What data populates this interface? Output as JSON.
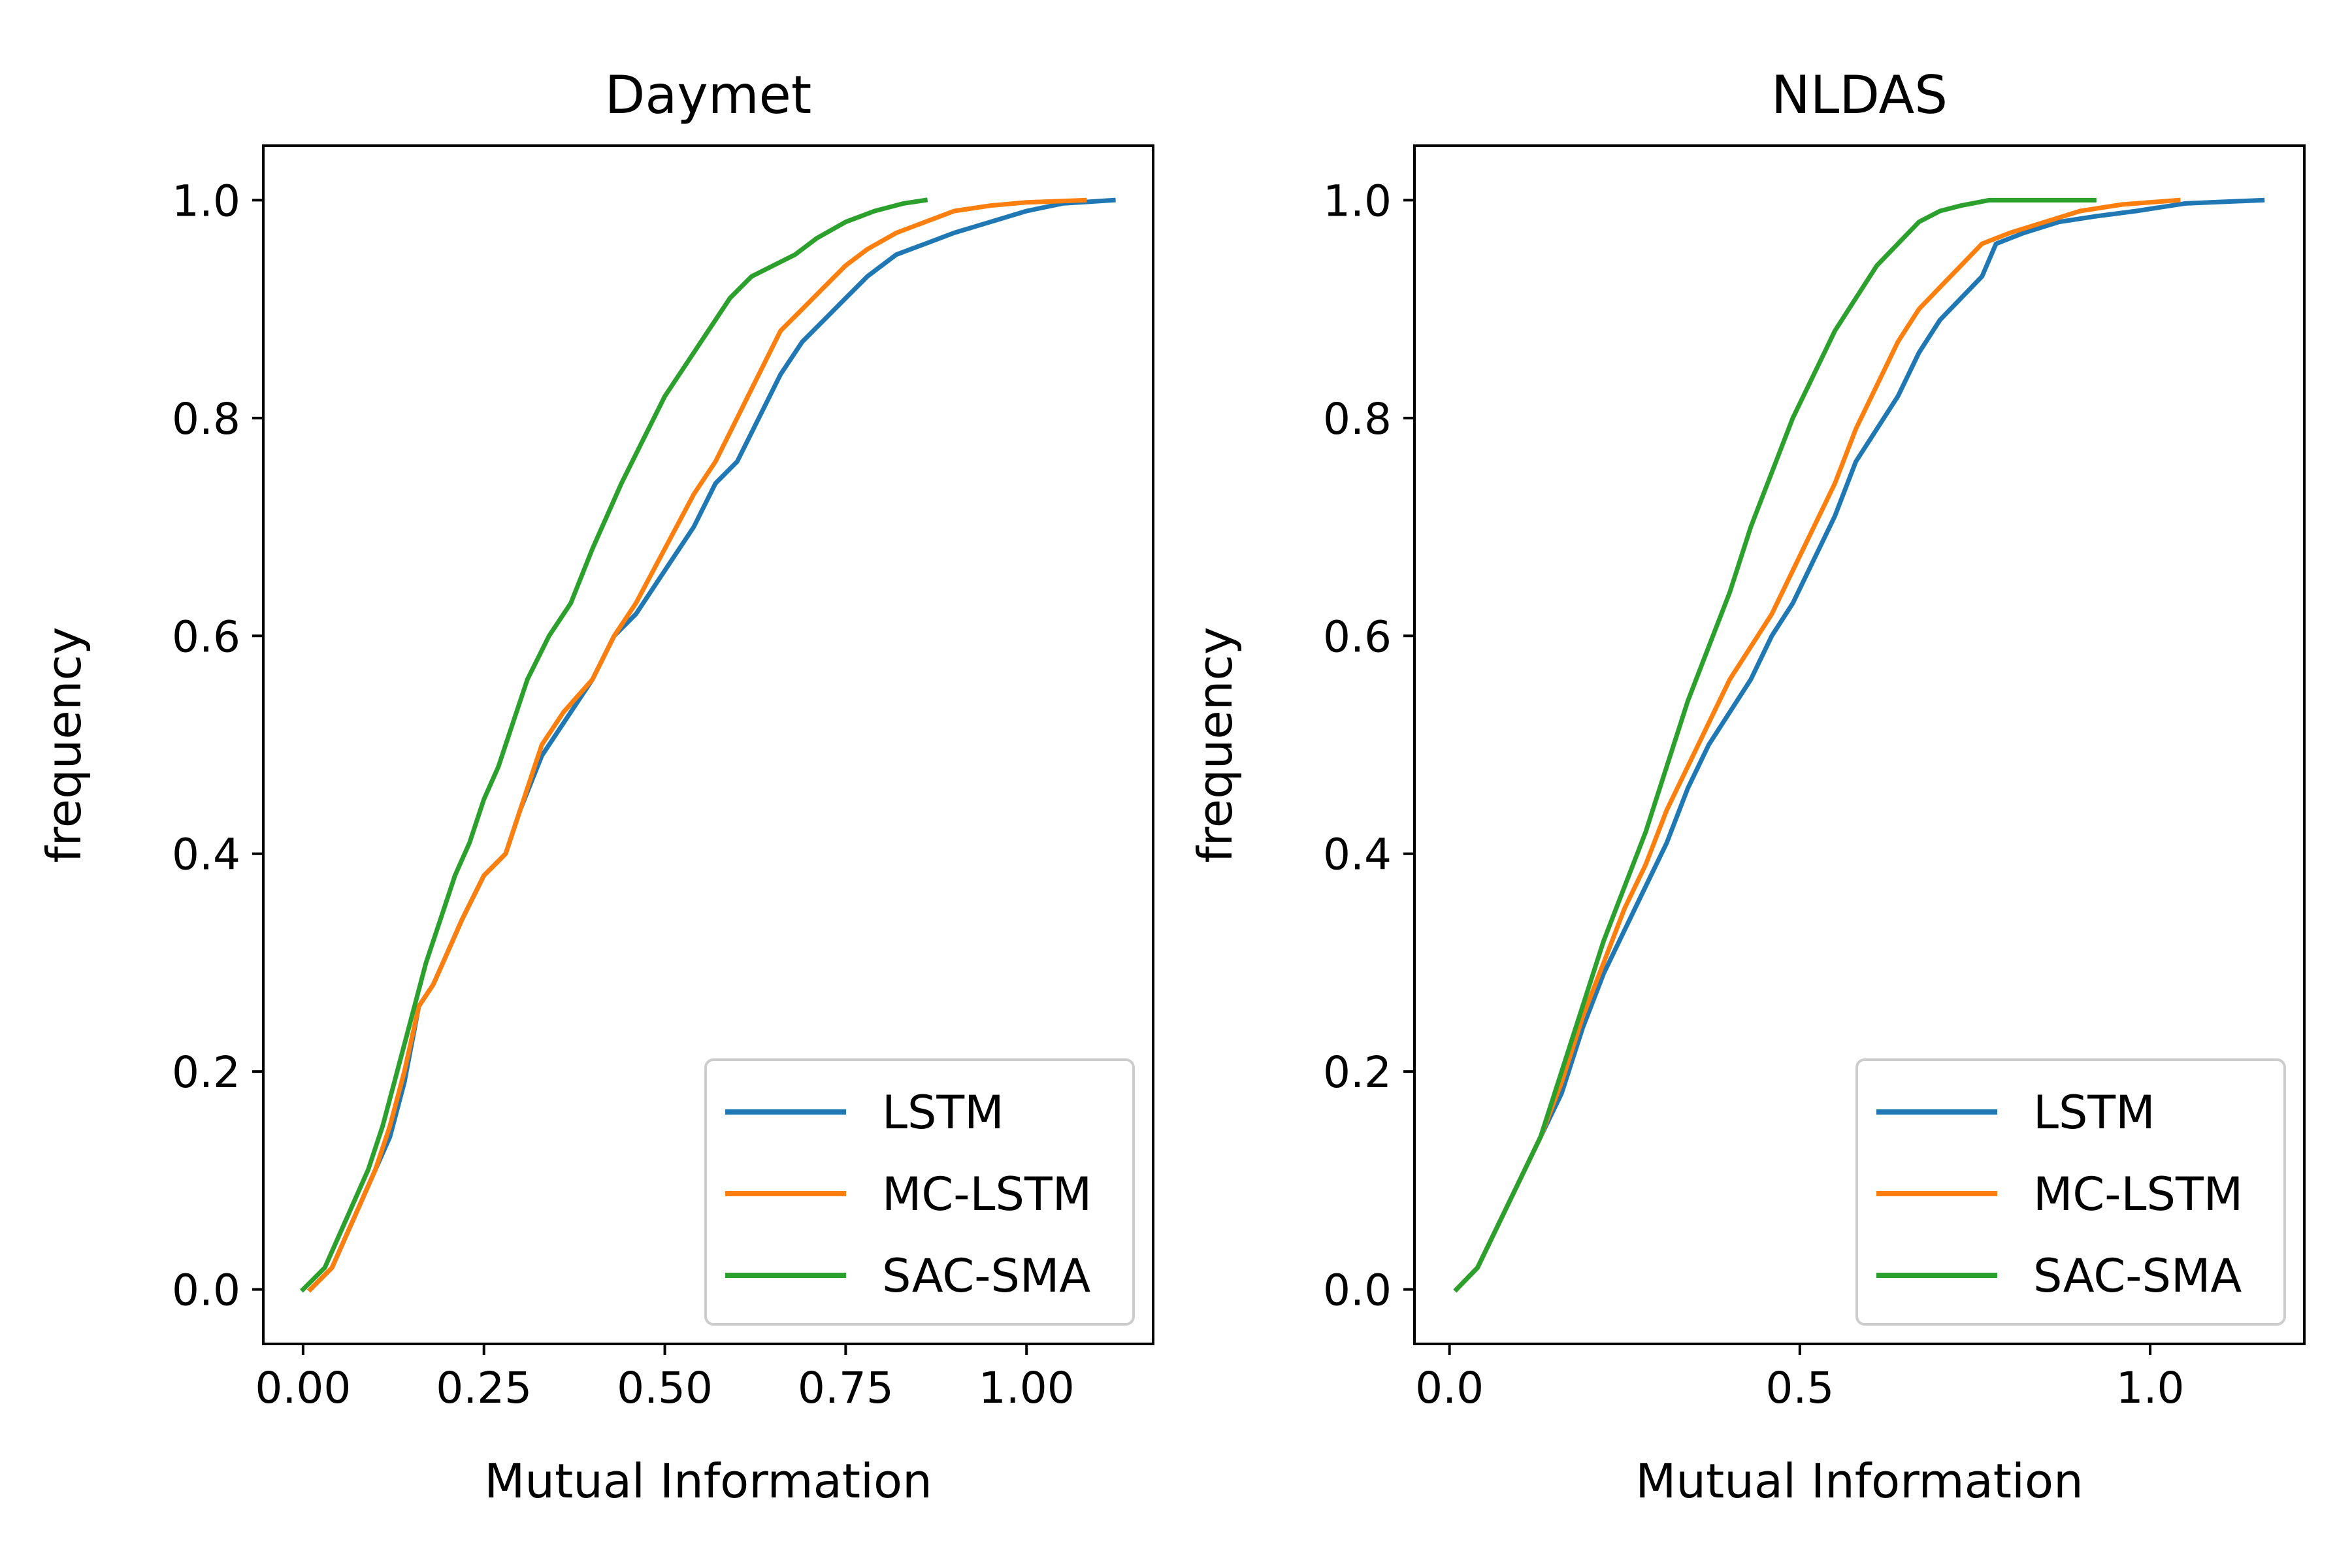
{
  "chart_data": [
    {
      "type": "line",
      "title": "Daymet",
      "xlabel": "Mutual Information",
      "ylabel": "frequency",
      "xlim": [
        -0.055,
        1.175
      ],
      "ylim": [
        -0.05,
        1.05
      ],
      "xticks": [
        0.0,
        0.25,
        0.5,
        0.75,
        1.0
      ],
      "xtick_labels": [
        "0.00",
        "0.25",
        "0.50",
        "0.75",
        "1.00"
      ],
      "yticks": [
        0.0,
        0.2,
        0.4,
        0.6,
        0.8,
        1.0
      ],
      "ytick_labels": [
        "0.0",
        "0.2",
        "0.4",
        "0.6",
        "0.8",
        "1.0"
      ],
      "legend": "lower-right",
      "grid": false,
      "series": [
        {
          "name": "LSTM",
          "color": "#1f77b4",
          "x": [
            0.01,
            0.04,
            0.06,
            0.08,
            0.1,
            0.12,
            0.14,
            0.16,
            0.18,
            0.2,
            0.22,
            0.25,
            0.28,
            0.3,
            0.33,
            0.36,
            0.4,
            0.43,
            0.46,
            0.5,
            0.54,
            0.57,
            0.6,
            0.63,
            0.66,
            0.69,
            0.72,
            0.75,
            0.78,
            0.82,
            0.86,
            0.9,
            0.95,
            1.0,
            1.05,
            1.12
          ],
          "y": [
            0.0,
            0.02,
            0.05,
            0.08,
            0.11,
            0.14,
            0.19,
            0.26,
            0.28,
            0.31,
            0.34,
            0.38,
            0.4,
            0.44,
            0.49,
            0.52,
            0.56,
            0.6,
            0.62,
            0.66,
            0.7,
            0.74,
            0.76,
            0.8,
            0.84,
            0.87,
            0.89,
            0.91,
            0.93,
            0.95,
            0.96,
            0.97,
            0.98,
            0.99,
            0.997,
            1.0
          ]
        },
        {
          "name": "MC-LSTM",
          "color": "#ff7f0e",
          "x": [
            0.01,
            0.04,
            0.06,
            0.08,
            0.1,
            0.12,
            0.14,
            0.16,
            0.18,
            0.2,
            0.22,
            0.25,
            0.28,
            0.3,
            0.33,
            0.36,
            0.4,
            0.43,
            0.46,
            0.5,
            0.54,
            0.57,
            0.6,
            0.63,
            0.66,
            0.69,
            0.72,
            0.75,
            0.78,
            0.82,
            0.86,
            0.9,
            0.95,
            1.0,
            1.08
          ],
          "y": [
            0.0,
            0.02,
            0.05,
            0.08,
            0.11,
            0.15,
            0.2,
            0.26,
            0.28,
            0.31,
            0.34,
            0.38,
            0.4,
            0.44,
            0.5,
            0.53,
            0.56,
            0.6,
            0.63,
            0.68,
            0.73,
            0.76,
            0.8,
            0.84,
            0.88,
            0.9,
            0.92,
            0.94,
            0.955,
            0.97,
            0.98,
            0.99,
            0.995,
            0.998,
            1.0
          ]
        },
        {
          "name": "SAC-SMA",
          "color": "#2ca02c",
          "x": [
            0.0,
            0.03,
            0.05,
            0.07,
            0.09,
            0.11,
            0.13,
            0.15,
            0.17,
            0.19,
            0.21,
            0.23,
            0.25,
            0.27,
            0.29,
            0.31,
            0.34,
            0.37,
            0.4,
            0.42,
            0.44,
            0.47,
            0.5,
            0.53,
            0.56,
            0.59,
            0.62,
            0.65,
            0.68,
            0.71,
            0.75,
            0.79,
            0.83,
            0.86
          ],
          "y": [
            0.0,
            0.02,
            0.05,
            0.08,
            0.11,
            0.15,
            0.2,
            0.25,
            0.3,
            0.34,
            0.38,
            0.41,
            0.45,
            0.48,
            0.52,
            0.56,
            0.6,
            0.63,
            0.68,
            0.71,
            0.74,
            0.78,
            0.82,
            0.85,
            0.88,
            0.91,
            0.93,
            0.94,
            0.95,
            0.965,
            0.98,
            0.99,
            0.997,
            1.0
          ]
        }
      ]
    },
    {
      "type": "line",
      "title": "NLDAS",
      "xlabel": "Mutual Information",
      "ylabel": "frequency",
      "xlim": [
        -0.05,
        1.22
      ],
      "ylim": [
        -0.05,
        1.05
      ],
      "xticks": [
        0.0,
        0.5,
        1.0
      ],
      "xtick_labels": [
        "0.0",
        "0.5",
        "1.0"
      ],
      "yticks": [
        0.0,
        0.2,
        0.4,
        0.6,
        0.8,
        1.0
      ],
      "ytick_labels": [
        "0.0",
        "0.2",
        "0.4",
        "0.6",
        "0.8",
        "1.0"
      ],
      "legend": "lower-right",
      "grid": false,
      "series": [
        {
          "name": "LSTM",
          "color": "#1f77b4",
          "x": [
            0.01,
            0.04,
            0.07,
            0.1,
            0.13,
            0.16,
            0.19,
            0.22,
            0.25,
            0.28,
            0.31,
            0.34,
            0.37,
            0.4,
            0.43,
            0.46,
            0.49,
            0.52,
            0.55,
            0.58,
            0.61,
            0.64,
            0.67,
            0.7,
            0.73,
            0.76,
            0.78,
            0.82,
            0.87,
            0.92,
            0.98,
            1.05,
            1.16
          ],
          "y": [
            0.0,
            0.02,
            0.06,
            0.1,
            0.14,
            0.18,
            0.24,
            0.29,
            0.33,
            0.37,
            0.41,
            0.46,
            0.5,
            0.53,
            0.56,
            0.6,
            0.63,
            0.67,
            0.71,
            0.76,
            0.79,
            0.82,
            0.86,
            0.89,
            0.91,
            0.93,
            0.96,
            0.97,
            0.98,
            0.985,
            0.99,
            0.997,
            1.0
          ]
        },
        {
          "name": "MC-LSTM",
          "color": "#ff7f0e",
          "x": [
            0.01,
            0.04,
            0.07,
            0.1,
            0.13,
            0.16,
            0.19,
            0.22,
            0.25,
            0.28,
            0.31,
            0.34,
            0.37,
            0.4,
            0.43,
            0.46,
            0.49,
            0.52,
            0.55,
            0.58,
            0.61,
            0.64,
            0.67,
            0.7,
            0.73,
            0.76,
            0.8,
            0.85,
            0.9,
            0.96,
            1.04
          ],
          "y": [
            0.0,
            0.02,
            0.06,
            0.1,
            0.14,
            0.19,
            0.25,
            0.3,
            0.35,
            0.39,
            0.44,
            0.48,
            0.52,
            0.56,
            0.59,
            0.62,
            0.66,
            0.7,
            0.74,
            0.79,
            0.83,
            0.87,
            0.9,
            0.92,
            0.94,
            0.96,
            0.97,
            0.98,
            0.99,
            0.996,
            1.0
          ]
        },
        {
          "name": "SAC-SMA",
          "color": "#2ca02c",
          "x": [
            0.01,
            0.04,
            0.07,
            0.1,
            0.13,
            0.16,
            0.19,
            0.22,
            0.25,
            0.28,
            0.31,
            0.34,
            0.37,
            0.4,
            0.43,
            0.46,
            0.49,
            0.52,
            0.55,
            0.58,
            0.61,
            0.64,
            0.67,
            0.7,
            0.73,
            0.77,
            0.82,
            0.92
          ],
          "y": [
            0.0,
            0.02,
            0.06,
            0.1,
            0.14,
            0.2,
            0.26,
            0.32,
            0.37,
            0.42,
            0.48,
            0.54,
            0.59,
            0.64,
            0.7,
            0.75,
            0.8,
            0.84,
            0.88,
            0.91,
            0.94,
            0.96,
            0.98,
            0.99,
            0.995,
            1.0,
            1.0,
            1.0
          ]
        }
      ]
    }
  ]
}
